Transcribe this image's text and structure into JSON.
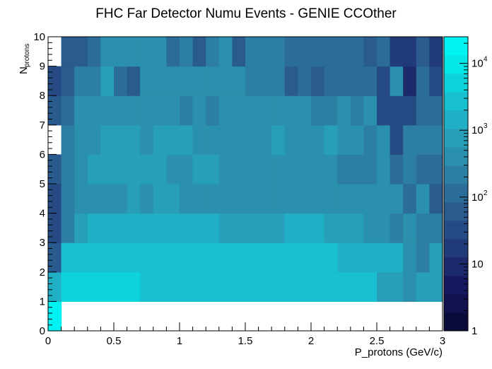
{
  "chart_data": {
    "type": "heatmap",
    "title": "FHC Far Detector Numu Events - GENIE CCOther",
    "xlabel": "P_protons (GeV/c)",
    "ylabel_main": "N",
    "ylabel_sub": "protons",
    "xlim": [
      0,
      3
    ],
    "ylim": [
      0,
      10
    ],
    "x_tick_labels": [
      "0",
      "0.5",
      "1",
      "1.5",
      "2",
      "2.5",
      "3"
    ],
    "y_tick_labels": [
      "0",
      "1",
      "2",
      "3",
      "4",
      "5",
      "6",
      "7",
      "8",
      "9",
      "10"
    ],
    "x_bins": 30,
    "y_bins": 10,
    "z_scale": "log",
    "zlim": [
      1,
      25000
    ],
    "palette": [
      "#0b0b3a",
      "#11114d",
      "#17195e",
      "#1c2a6c",
      "#213a78",
      "#254a84",
      "#295b8e",
      "#2c6c98",
      "#2d7ea3",
      "#2b90ad",
      "#279fb9",
      "#20afc4",
      "#17c1cf",
      "#0ed3db",
      "#05e6e6",
      "#00f3f3"
    ],
    "colorbar_tick_labels": [
      {
        "value": 1,
        "base": "1",
        "exp": ""
      },
      {
        "value": 10,
        "base": "10",
        "exp": ""
      },
      {
        "value": 100,
        "base": "10",
        "exp": "2"
      },
      {
        "value": 1000,
        "base": "10",
        "exp": "3"
      },
      {
        "value": 10000,
        "base": "10",
        "exp": "4"
      }
    ],
    "z_counts": [
      [
        20000,
        0,
        0,
        0,
        0,
        0,
        0,
        0,
        0,
        0,
        0,
        0,
        0,
        0,
        0,
        0,
        0,
        0,
        0,
        0,
        0,
        0,
        0,
        0,
        0,
        0,
        0,
        0,
        0,
        0
      ],
      [
        1500,
        6000,
        6000,
        6000,
        6000,
        6000,
        6000,
        3500,
        3500,
        3500,
        3500,
        3500,
        3500,
        3500,
        3500,
        2600,
        2600,
        2600,
        2600,
        2600,
        2000,
        2000,
        2000,
        2000,
        2000,
        800,
        800,
        500,
        1000,
        700
      ],
      [
        80,
        2800,
        2800,
        3500,
        3500,
        3500,
        3500,
        3500,
        3500,
        3500,
        3500,
        3500,
        3500,
        3500,
        3500,
        3500,
        3500,
        2000,
        2000,
        2000,
        2000,
        2000,
        1300,
        1300,
        1700,
        1200,
        1200,
        550,
        250,
        700
      ],
      [
        35,
        230,
        800,
        1200,
        1200,
        1200,
        1200,
        1200,
        1200,
        1200,
        1200,
        1200,
        1200,
        800,
        800,
        800,
        800,
        600,
        1200,
        1200,
        1200,
        800,
        800,
        800,
        350,
        550,
        250,
        550,
        250,
        250
      ],
      [
        30,
        180,
        500,
        500,
        500,
        500,
        1000,
        500,
        1000,
        1000,
        500,
        300,
        500,
        500,
        500,
        500,
        500,
        500,
        500,
        500,
        500,
        500,
        500,
        300,
        300,
        300,
        300,
        120,
        300,
        70
      ],
      [
        50,
        230,
        550,
        700,
        700,
        700,
        700,
        700,
        700,
        500,
        500,
        800,
        800,
        500,
        300,
        300,
        300,
        500,
        300,
        300,
        300,
        300,
        200,
        200,
        200,
        350,
        150,
        250,
        120,
        120
      ],
      [
        0,
        180,
        450,
        550,
        800,
        800,
        800,
        550,
        800,
        800,
        800,
        550,
        550,
        550,
        550,
        550,
        550,
        800,
        550,
        550,
        550,
        800,
        550,
        550,
        180,
        350,
        35,
        200,
        200,
        200
      ],
      [
        60,
        130,
        350,
        350,
        350,
        550,
        550,
        550,
        550,
        550,
        280,
        550,
        280,
        550,
        450,
        450,
        450,
        450,
        450,
        450,
        200,
        200,
        450,
        200,
        450,
        30,
        30,
        30,
        120,
        120
      ],
      [
        25,
        80,
        250,
        200,
        600,
        150,
        45,
        400,
        400,
        400,
        400,
        400,
        400,
        400,
        400,
        200,
        200,
        250,
        60,
        150,
        80,
        140,
        140,
        140,
        140,
        35,
        300,
        8,
        130,
        35
      ],
      [
        0,
        60,
        60,
        130,
        300,
        300,
        300,
        300,
        300,
        130,
        200,
        75,
        200,
        300,
        75,
        200,
        200,
        200,
        100,
        100,
        100,
        100,
        100,
        100,
        50,
        100,
        20,
        20,
        50,
        15
      ]
    ]
  }
}
